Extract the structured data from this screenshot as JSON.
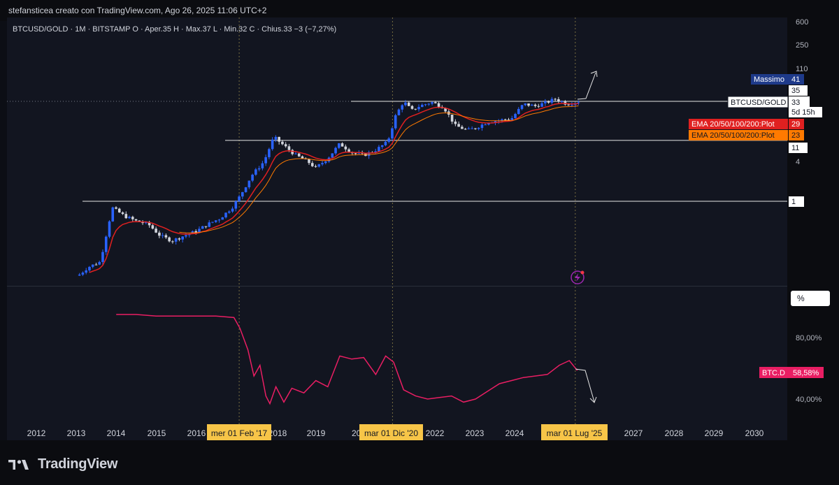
{
  "header": {
    "title": "stefansticea creato con TradingView.com, Ago 26, 2025 11:06 UTC+2"
  },
  "symbol_line": "BTCUSD/GOLD · 1M · BITSTAMP  O · Aper.35  H · Max.37  L · Min.32  C · Chius.33  −3 (−7,27%)",
  "brand": {
    "name": "TradingView"
  },
  "colors": {
    "up": "#2962ff",
    "down": "#d1d4dc",
    "ema_fast": "#e02020",
    "ema_slow": "#ff7a00",
    "dominance": "#e91e63",
    "date_highlight": "#f7c548"
  },
  "chart_data": [
    {
      "type": "candlestick",
      "title": "BTCUSD/GOLD",
      "scale": "log",
      "y_ticks": [
        "600",
        "250",
        "110",
        "35",
        "33",
        "11",
        "4",
        "1"
      ],
      "price_labels": [
        {
          "label": "Massimo",
          "value": "41"
        },
        {
          "label": "BTCUSD/GOLD",
          "value": "33",
          "countdown": "5d 15h"
        },
        {
          "label": "EMA 20/50/100/200:Plot",
          "value": "29"
        },
        {
          "label": "EMA 20/50/100/200:Plot",
          "value": "23"
        }
      ],
      "horizontal_levels": [
        1,
        11,
        33
      ],
      "series": [
        {
          "name": "BTCUSD/GOLD",
          "description": "monthly close (approx)",
          "x": [
            2013.0,
            2013.3,
            2013.6,
            2013.9,
            2014.2,
            2014.5,
            2014.8,
            2015.1,
            2015.4,
            2015.7,
            2016.0,
            2016.3,
            2016.6,
            2016.9,
            2017.1,
            2017.4,
            2017.7,
            2017.95,
            2018.2,
            2018.5,
            2018.8,
            2019.0,
            2019.3,
            2019.6,
            2019.9,
            2020.2,
            2020.5,
            2020.8,
            2021.0,
            2021.2,
            2021.4,
            2021.6,
            2021.9,
            2022.2,
            2022.5,
            2022.8,
            2023.0,
            2023.3,
            2023.6,
            2023.9,
            2024.2,
            2024.5,
            2024.8,
            2025.0,
            2025.3,
            2025.6
          ],
          "y": [
            0.07,
            0.1,
            0.12,
            0.8,
            0.6,
            0.5,
            0.45,
            0.3,
            0.25,
            0.3,
            0.35,
            0.45,
            0.55,
            0.8,
            1.2,
            2.5,
            4.0,
            9.5,
            7.0,
            5.0,
            4.0,
            3.2,
            4.5,
            7.5,
            5.5,
            5.0,
            6.0,
            8.0,
            20,
            33,
            24,
            28,
            32,
            27,
            14,
            12,
            13,
            16,
            17,
            18,
            30,
            28,
            32,
            36,
            30,
            33
          ]
        },
        {
          "name": "EMA 20/50/100/200:Plot",
          "value": 29
        },
        {
          "name": "EMA 20/50/100/200:Plot",
          "value": 23
        }
      ],
      "x_range": [
        2012,
        2030
      ]
    },
    {
      "type": "line",
      "title": "BTC.D",
      "y_ticks": [
        "80,00%",
        "40,00%"
      ],
      "unit_label": "%",
      "last_value": "58,58%",
      "series": [
        {
          "name": "BTC.D",
          "x": [
            2014.0,
            2014.5,
            2015.0,
            2015.5,
            2016.0,
            2016.5,
            2016.95,
            2017.1,
            2017.3,
            2017.45,
            2017.6,
            2017.75,
            2017.85,
            2018.0,
            2018.2,
            2018.4,
            2018.7,
            2019.0,
            2019.3,
            2019.6,
            2019.9,
            2020.2,
            2020.5,
            2020.75,
            2020.95,
            2021.2,
            2021.5,
            2021.8,
            2022.1,
            2022.4,
            2022.7,
            2023.0,
            2023.3,
            2023.6,
            2023.9,
            2024.2,
            2024.5,
            2024.8,
            2025.1,
            2025.35,
            2025.55
          ],
          "y": [
            95,
            95,
            94,
            94,
            94,
            94,
            93,
            86,
            72,
            55,
            62,
            42,
            37,
            48,
            38,
            47,
            44,
            52,
            48,
            68,
            66,
            67,
            56,
            68,
            64,
            46,
            42,
            40,
            41,
            42,
            38,
            40,
            45,
            50,
            52,
            54,
            55,
            56,
            62,
            65,
            58.58
          ]
        }
      ]
    }
  ],
  "time_axis": {
    "years": [
      "2012",
      "2013",
      "2014",
      "2015",
      "2016",
      "2018",
      "2019",
      "2022",
      "2023",
      "2024",
      "2027",
      "2028",
      "2029",
      "2030"
    ],
    "highlights": [
      "mer 01 Feb '17",
      "mar 01 Dic '20",
      "mar 01 Lug '25"
    ]
  }
}
